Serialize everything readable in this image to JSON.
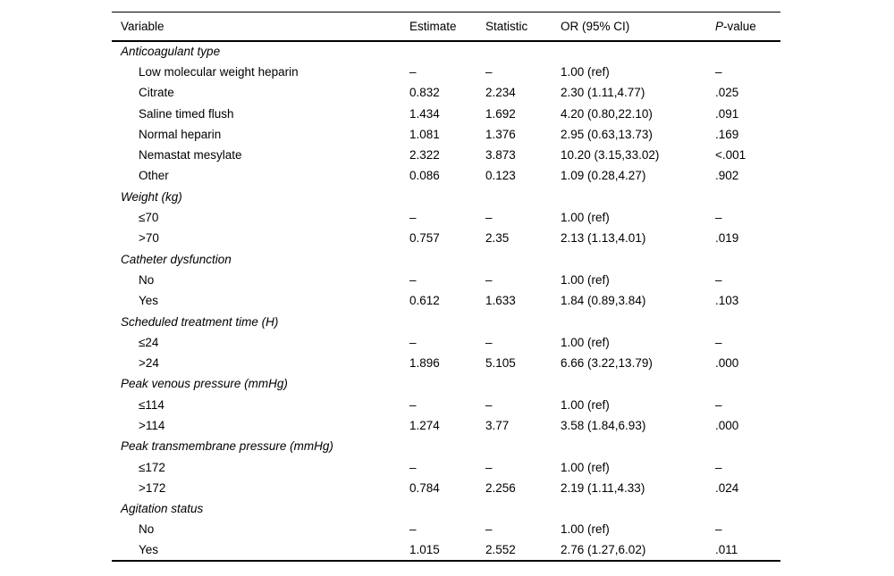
{
  "page": {
    "background": "#ffffff",
    "text_color": "#000000",
    "rule_color": "#000000"
  },
  "table": {
    "columns": [
      "Variable",
      "Estimate",
      "Statistic",
      "OR (95% CI)",
      "P-value"
    ],
    "groups": [
      {
        "label": "Anticoagulant type",
        "rows": [
          {
            "label": "Low molecular weight heparin",
            "estimate": "–",
            "statistic": "–",
            "or": "1.00 (ref)",
            "p": "–"
          },
          {
            "label": "Citrate",
            "estimate": "0.832",
            "statistic": "2.234",
            "or": "2.30 (1.11,4.77)",
            "p": ".025"
          },
          {
            "label": "Saline timed flush",
            "estimate": "1.434",
            "statistic": "1.692",
            "or": "4.20 (0.80,22.10)",
            "p": ".091"
          },
          {
            "label": "Normal heparin",
            "estimate": "1.081",
            "statistic": "1.376",
            "or": "2.95 (0.63,13.73)",
            "p": ".169"
          },
          {
            "label": "Nemastat mesylate",
            "estimate": "2.322",
            "statistic": "3.873",
            "or": "10.20 (3.15,33.02)",
            "p": "<.001"
          },
          {
            "label": "Other",
            "estimate": "0.086",
            "statistic": "0.123",
            "or": "1.09 (0.28,4.27)",
            "p": ".902"
          }
        ]
      },
      {
        "label": "Weight (kg)",
        "rows": [
          {
            "label": "≤70",
            "estimate": "–",
            "statistic": "–",
            "or": "1.00 (ref)",
            "p": "–"
          },
          {
            "label": ">70",
            "estimate": "0.757",
            "statistic": "2.35",
            "or": "2.13 (1.13,4.01)",
            "p": ".019"
          }
        ]
      },
      {
        "label": "Catheter dysfunction",
        "rows": [
          {
            "label": "No",
            "estimate": "–",
            "statistic": "–",
            "or": "1.00 (ref)",
            "p": "–"
          },
          {
            "label": "Yes",
            "estimate": "0.612",
            "statistic": "1.633",
            "or": "1.84 (0.89,3.84)",
            "p": ".103"
          }
        ]
      },
      {
        "label": "Scheduled treatment time (H)",
        "rows": [
          {
            "label": "≤24",
            "estimate": "–",
            "statistic": "–",
            "or": "1.00 (ref)",
            "p": "–"
          },
          {
            "label": ">24",
            "estimate": "1.896",
            "statistic": "5.105",
            "or": "6.66 (3.22,13.79)",
            "p": ".000"
          }
        ]
      },
      {
        "label": "Peak venous pressure (mmHg)",
        "rows": [
          {
            "label": "≤114",
            "estimate": "–",
            "statistic": "–",
            "or": "1.00 (ref)",
            "p": "–"
          },
          {
            "label": ">114",
            "estimate": "1.274",
            "statistic": "3.77",
            "or": "3.58 (1.84,6.93)",
            "p": ".000"
          }
        ]
      },
      {
        "label": "Peak transmembrane pressure (mmHg)",
        "rows": [
          {
            "label": "≤172",
            "estimate": "–",
            "statistic": "–",
            "or": "1.00 (ref)",
            "p": "–"
          },
          {
            "label": ">172",
            "estimate": "0.784",
            "statistic": "2.256",
            "or": "2.19 (1.11,4.33)",
            "p": ".024"
          }
        ]
      },
      {
        "label": "Agitation status",
        "rows": [
          {
            "label": "No",
            "estimate": "–",
            "statistic": "–",
            "or": "1.00 (ref)",
            "p": "–"
          },
          {
            "label": "Yes",
            "estimate": "1.015",
            "statistic": "2.552",
            "or": "2.76 (1.27,6.02)",
            "p": ".011"
          }
        ]
      }
    ]
  }
}
